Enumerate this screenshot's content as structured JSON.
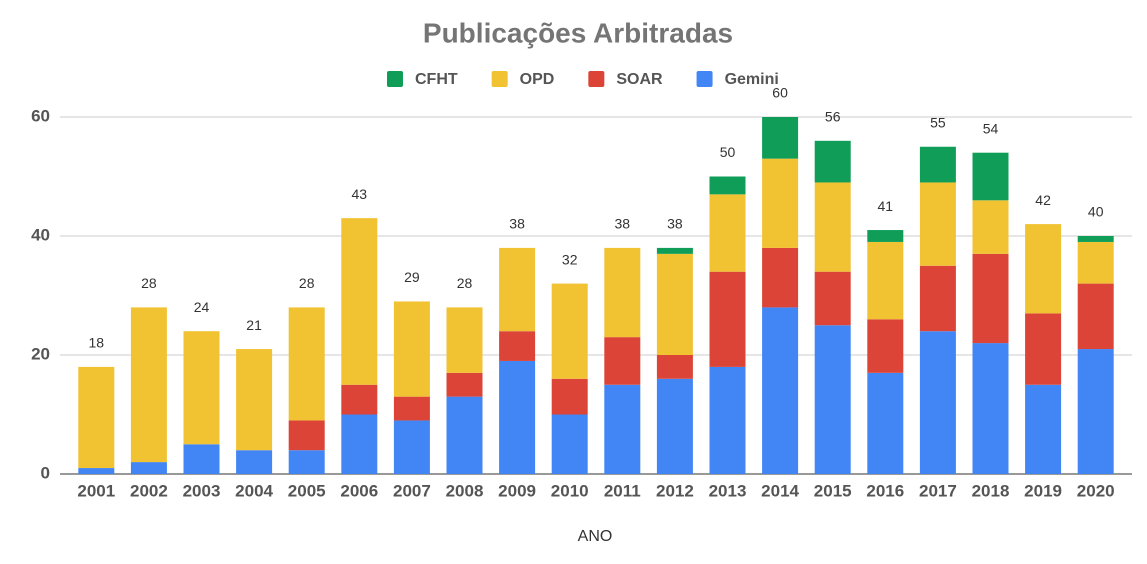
{
  "chart_data": {
    "type": "stacked_bar",
    "title": "Publicações Arbitradas",
    "x_label": "ANO",
    "categories": [
      "2001",
      "2002",
      "2003",
      "2004",
      "2005",
      "2006",
      "2007",
      "2008",
      "2009",
      "2010",
      "2011",
      "2012",
      "2013",
      "2014",
      "2015",
      "2016",
      "2017",
      "2018",
      "2019",
      "2020"
    ],
    "series": [
      {
        "name": "CFHT",
        "color": "#0f9d58",
        "values": [
          0,
          0,
          0,
          0,
          0,
          0,
          0,
          0,
          0,
          0,
          0,
          1,
          3,
          7,
          7,
          2,
          6,
          8,
          0,
          1
        ]
      },
      {
        "name": "OPD",
        "color": "#f1c232",
        "values": [
          17,
          26,
          19,
          17,
          19,
          28,
          16,
          11,
          14,
          16,
          15,
          17,
          13,
          15,
          15,
          13,
          14,
          9,
          15,
          7
        ]
      },
      {
        "name": "SOAR",
        "color": "#db4437",
        "values": [
          0,
          0,
          0,
          0,
          5,
          5,
          4,
          4,
          5,
          6,
          8,
          4,
          16,
          10,
          9,
          9,
          11,
          15,
          12,
          11
        ]
      },
      {
        "name": "Gemini",
        "color": "#4285f4",
        "values": [
          1,
          2,
          5,
          4,
          4,
          10,
          9,
          13,
          19,
          10,
          15,
          16,
          18,
          28,
          25,
          17,
          24,
          22,
          15,
          21
        ]
      }
    ],
    "totals": [
      18,
      28,
      24,
      21,
      28,
      43,
      29,
      28,
      38,
      32,
      38,
      38,
      50,
      60,
      56,
      41,
      55,
      54,
      42,
      40
    ],
    "ylim": [
      0,
      60
    ],
    "yticks": [
      0,
      20,
      40,
      60
    ],
    "grid": true
  }
}
